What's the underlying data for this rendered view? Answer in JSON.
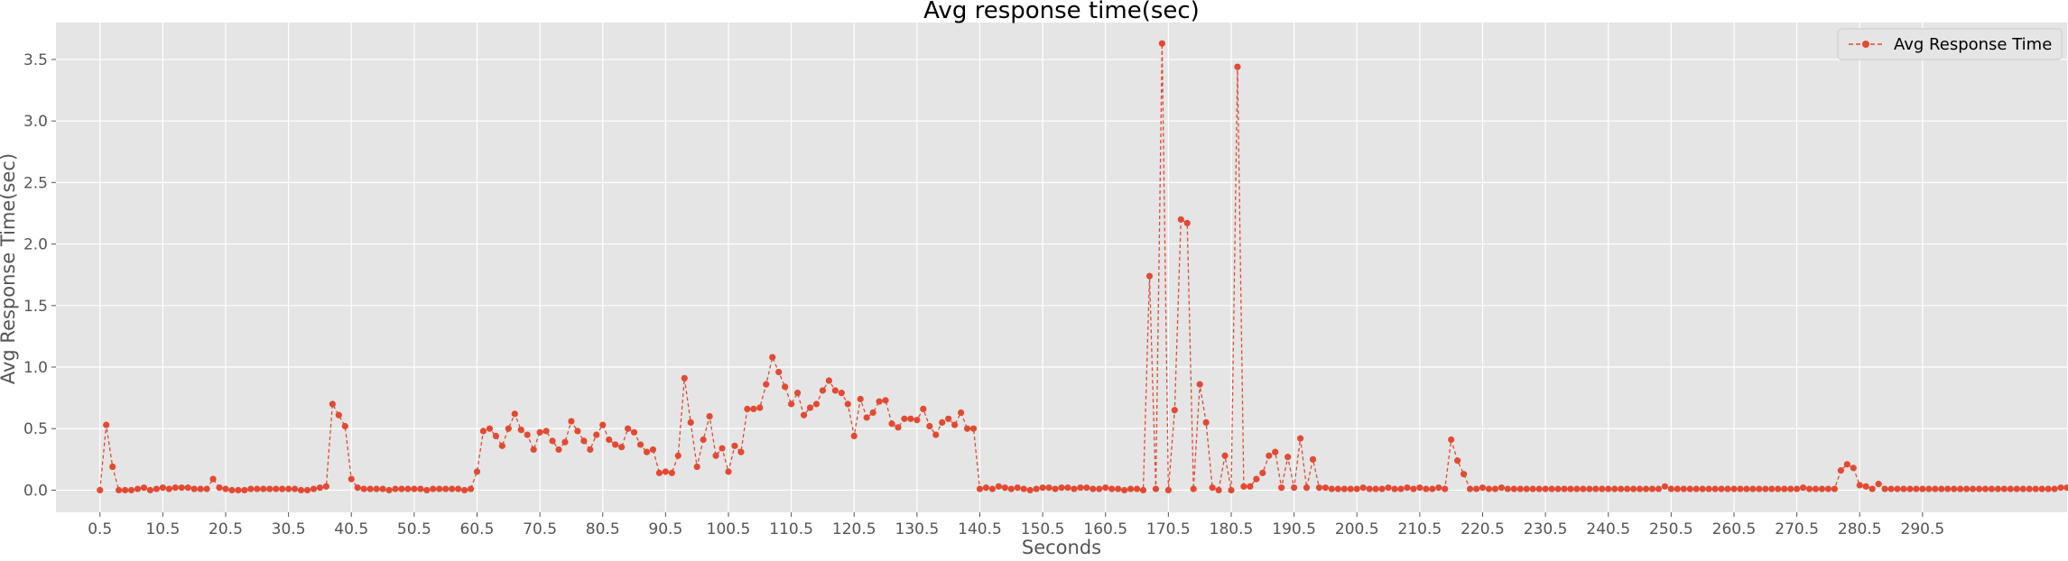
{
  "chart_data": {
    "type": "line",
    "title": "Avg response time(sec)",
    "xlabel": "Seconds",
    "ylabel": "Avg Response Time(sec)",
    "xlim": [
      -6.5,
      313.5
    ],
    "ylim": [
      -0.18,
      3.8
    ],
    "x_tick_values": [
      0.5,
      10.5,
      20.5,
      30.5,
      40.5,
      50.5,
      60.5,
      70.5,
      80.5,
      90.5,
      100.5,
      110.5,
      120.5,
      130.5,
      140.5,
      150.5,
      160.5,
      170.5,
      180.5,
      190.5,
      200.5,
      210.5,
      220.5,
      230.5,
      240.5,
      250.5,
      260.5,
      270.5,
      280.5,
      290.5
    ],
    "x_tick_labels": [
      "0.5",
      "10.5",
      "20.5",
      "30.5",
      "40.5",
      "50.5",
      "60.5",
      "70.5",
      "80.5",
      "90.5",
      "100.5",
      "110.5",
      "120.5",
      "130.5",
      "140.5",
      "150.5",
      "160.5",
      "170.5",
      "180.5",
      "190.5",
      "200.5",
      "210.5",
      "220.5",
      "230.5",
      "240.5",
      "250.5",
      "260.5",
      "270.5",
      "280.5",
      "290.5"
    ],
    "y_tick_values": [
      0.0,
      0.5,
      1.0,
      1.5,
      2.0,
      2.5,
      3.0,
      3.5
    ],
    "y_tick_labels": [
      "0.0",
      "0.5",
      "1.0",
      "1.5",
      "2.0",
      "2.5",
      "3.0",
      "3.5"
    ],
    "grid": true,
    "legend_position": "top-right",
    "series_color": "#E24A33",
    "background_color": "#E5E5E5",
    "grid_color": "#FFFFFF",
    "text_color": "#555555",
    "series": [
      {
        "name": "Avg Response Time",
        "x_start": 0.5,
        "x_step": 1,
        "values": [
          0.0,
          0.53,
          0.19,
          0.0,
          0.0,
          0.0,
          0.01,
          0.02,
          0.0,
          0.01,
          0.02,
          0.01,
          0.02,
          0.02,
          0.02,
          0.01,
          0.01,
          0.01,
          0.09,
          0.02,
          0.01,
          0.0,
          0.0,
          0.0,
          0.01,
          0.01,
          0.01,
          0.01,
          0.01,
          0.01,
          0.01,
          0.01,
          0.0,
          0.0,
          0.01,
          0.02,
          0.03,
          0.7,
          0.61,
          0.52,
          0.09,
          0.02,
          0.01,
          0.01,
          0.01,
          0.01,
          0.0,
          0.01,
          0.01,
          0.01,
          0.01,
          0.01,
          0.0,
          0.01,
          0.01,
          0.01,
          0.01,
          0.01,
          0.0,
          0.01,
          0.15,
          0.48,
          0.5,
          0.44,
          0.36,
          0.5,
          0.62,
          0.49,
          0.45,
          0.33,
          0.47,
          0.48,
          0.4,
          0.33,
          0.39,
          0.56,
          0.48,
          0.4,
          0.33,
          0.45,
          0.53,
          0.41,
          0.37,
          0.35,
          0.5,
          0.47,
          0.37,
          0.31,
          0.33,
          0.14,
          0.15,
          0.14,
          0.28,
          0.91,
          0.55,
          0.19,
          0.41,
          0.6,
          0.28,
          0.34,
          0.15,
          0.36,
          0.31,
          0.66,
          0.66,
          0.67,
          0.86,
          1.08,
          0.96,
          0.84,
          0.7,
          0.79,
          0.61,
          0.67,
          0.7,
          0.81,
          0.89,
          0.81,
          0.79,
          0.7,
          0.44,
          0.74,
          0.59,
          0.63,
          0.72,
          0.73,
          0.54,
          0.51,
          0.58,
          0.58,
          0.57,
          0.66,
          0.52,
          0.45,
          0.55,
          0.58,
          0.53,
          0.63,
          0.5,
          0.5,
          0.01,
          0.02,
          0.01,
          0.03,
          0.02,
          0.01,
          0.02,
          0.01,
          0.0,
          0.01,
          0.02,
          0.02,
          0.01,
          0.02,
          0.02,
          0.01,
          0.02,
          0.02,
          0.01,
          0.01,
          0.02,
          0.01,
          0.01,
          0.0,
          0.01,
          0.01,
          0.0,
          1.74,
          0.01,
          3.63,
          0.0,
          0.65,
          2.2,
          2.17,
          0.01,
          0.86,
          0.55,
          0.02,
          0.0,
          0.28,
          0.0,
          3.44,
          0.03,
          0.03,
          0.09,
          0.14,
          0.28,
          0.31,
          0.02,
          0.27,
          0.02,
          0.42,
          0.02,
          0.25,
          0.02,
          0.02,
          0.01,
          0.01,
          0.01,
          0.01,
          0.01,
          0.02,
          0.01,
          0.01,
          0.01,
          0.02,
          0.01,
          0.01,
          0.02,
          0.01,
          0.02,
          0.01,
          0.01,
          0.02,
          0.01,
          0.41,
          0.24,
          0.13,
          0.01,
          0.01,
          0.02,
          0.01,
          0.01,
          0.02,
          0.01,
          0.01,
          0.01,
          0.01,
          0.01,
          0.01,
          0.01,
          0.01,
          0.01,
          0.01,
          0.01,
          0.01,
          0.01,
          0.01,
          0.01,
          0.01,
          0.01,
          0.01,
          0.01,
          0.01,
          0.01,
          0.01,
          0.01,
          0.01,
          0.01,
          0.03,
          0.01,
          0.01,
          0.01,
          0.01,
          0.01,
          0.01,
          0.01,
          0.01,
          0.01,
          0.01,
          0.01,
          0.01,
          0.01,
          0.01,
          0.01,
          0.01,
          0.01,
          0.01,
          0.01,
          0.01,
          0.01,
          0.02,
          0.01,
          0.01,
          0.01,
          0.01,
          0.01,
          0.16,
          0.21,
          0.18,
          0.04,
          0.03,
          0.01,
          0.05,
          0.01,
          0.01,
          0.01,
          0.01,
          0.01,
          0.01,
          0.01,
          0.01,
          0.01,
          0.01,
          0.01,
          0.01,
          0.01,
          0.01,
          0.01,
          0.01,
          0.01,
          0.01,
          0.01,
          0.01,
          0.01,
          0.01,
          0.01,
          0.01,
          0.01,
          0.01,
          0.01,
          0.01,
          0.02,
          0.02
        ]
      }
    ]
  }
}
